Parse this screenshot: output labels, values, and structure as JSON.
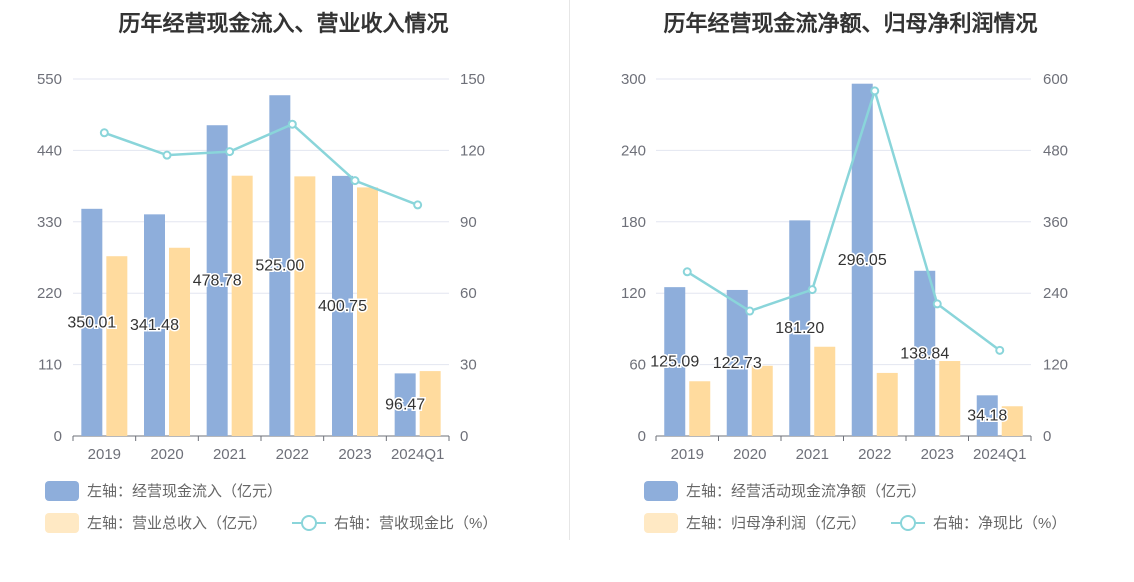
{
  "chart_data": [
    {
      "type": "bar",
      "title": "历年经营现金流入、营业收入情况",
      "categories": [
        "2019",
        "2020",
        "2021",
        "2022",
        "2023",
        "2024Q1"
      ],
      "left_axis": {
        "ticks": [
          "0",
          "110",
          "220",
          "330",
          "440",
          "550"
        ],
        "range": [
          0,
          550
        ]
      },
      "right_axis": {
        "ticks": [
          "0",
          "30",
          "60",
          "90",
          "120",
          "150"
        ],
        "range": [
          0,
          150
        ]
      },
      "series": [
        {
          "name": "左轴：经营现金流入（亿元）",
          "kind": "bar",
          "axis": "left",
          "color": "#8eaedb",
          "values": [
            350.01,
            341.48,
            478.78,
            525.0,
            400.75,
            96.47
          ],
          "labels": [
            "350.01",
            "341.48",
            "478.78",
            "525.00",
            "400.75",
            "96.47"
          ]
        },
        {
          "name": "左轴：营业总收入（亿元）",
          "kind": "bar",
          "axis": "left",
          "color": "#ffdb9e",
          "values": [
            277,
            290,
            401,
            400,
            383,
            100
          ]
        },
        {
          "name": "右轴：营收现金比（%）",
          "kind": "line",
          "axis": "right",
          "color": "#8ad5da",
          "values": [
            127.4,
            118.0,
            119.5,
            131.0,
            107.3,
            97.1
          ]
        }
      ]
    },
    {
      "type": "bar",
      "title": "历年经营现金流净额、归母净利润情况",
      "categories": [
        "2019",
        "2020",
        "2021",
        "2022",
        "2023",
        "2024Q1"
      ],
      "left_axis": {
        "ticks": [
          "0",
          "60",
          "120",
          "180",
          "240",
          "300"
        ],
        "range": [
          0,
          300
        ]
      },
      "right_axis": {
        "ticks": [
          "0",
          "120",
          "240",
          "360",
          "480",
          "600"
        ],
        "range": [
          0,
          600
        ]
      },
      "series": [
        {
          "name": "左轴：经营活动现金流净额（亿元）",
          "kind": "bar",
          "axis": "left",
          "color": "#8eaedb",
          "values": [
            125.09,
            122.73,
            181.2,
            296.05,
            138.84,
            34.18
          ],
          "labels": [
            "125.09",
            "122.73",
            "181.20",
            "296.05",
            "138.84",
            "34.18"
          ]
        },
        {
          "name": "左轴：归母净利润（亿元）",
          "kind": "bar",
          "axis": "left",
          "color": "#ffdb9e",
          "values": [
            46,
            59,
            75,
            53,
            63,
            25
          ]
        },
        {
          "name": "右轴：净现比（%）",
          "kind": "line",
          "axis": "right",
          "color": "#8ad5da",
          "values": [
            276,
            210,
            246,
            580,
            222,
            144
          ]
        }
      ]
    }
  ]
}
